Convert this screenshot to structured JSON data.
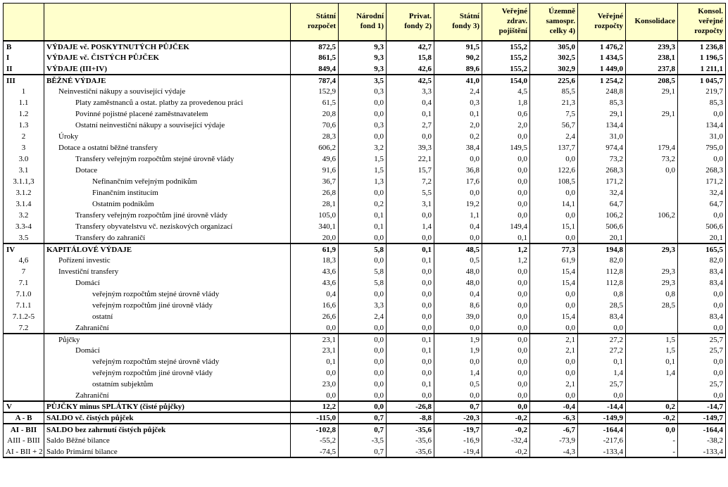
{
  "headers": [
    "",
    "",
    "Státní rozpočet",
    "Národní fond 1)",
    "Privat. fondy 2)",
    "Státní fondy 3)",
    "Veřejné zdrav. pojištění",
    "Územně samospr. celky 4)",
    "Veřejné rozpočty",
    "Konsolidace",
    "Konsol. veřejné rozpočty"
  ],
  "rows": [
    {
      "code": "B",
      "desc": "VÝDAJE vč. POSKYTNUTÝCH PŮJČEK",
      "ind": 0,
      "bold": true,
      "top": true,
      "v": [
        "872,5",
        "9,3",
        "42,7",
        "91,5",
        "155,2",
        "305,0",
        "1 476,2",
        "239,3",
        "1 236,8"
      ]
    },
    {
      "code": "I",
      "desc": "VÝDAJE vč. ČISTÝCH PŮJČEK",
      "ind": 0,
      "bold": true,
      "v": [
        "861,5",
        "9,3",
        "15,8",
        "90,2",
        "155,2",
        "302,5",
        "1 434,5",
        "238,1",
        "1 196,5"
      ]
    },
    {
      "code": "II",
      "desc": "VÝDAJE   (III+IV)",
      "ind": 0,
      "bold": true,
      "v": [
        "849,4",
        "9,3",
        "42,6",
        "89,6",
        "155,2",
        "302,9",
        "1 449,0",
        "237,8",
        "1 211,1"
      ]
    },
    {
      "code": "III",
      "desc": "BĚŽNÉ  VÝDAJE",
      "ind": 0,
      "bold": true,
      "top": true,
      "v": [
        "787,4",
        "3,5",
        "42,5",
        "41,0",
        "154,0",
        "225,6",
        "1 254,2",
        "208,5",
        "1 045,7"
      ]
    },
    {
      "code": "1",
      "desc": "Neinvestiční nákupy a související výdaje",
      "ind": 1,
      "v": [
        "152,9",
        "0,3",
        "3,3",
        "2,4",
        "4,5",
        "85,5",
        "248,8",
        "29,1",
        "219,7"
      ]
    },
    {
      "code": "1.1",
      "desc": "Platy zaměstnanců a ostat. platby za provedenou práci",
      "ind": 2,
      "v": [
        "61,5",
        "0,0",
        "0,4",
        "0,3",
        "1,8",
        "21,3",
        "85,3",
        "",
        "85,3"
      ]
    },
    {
      "code": "1.2",
      "desc": "Povinné pojistné placené zaměstnavatelem",
      "ind": 2,
      "v": [
        "20,8",
        "0,0",
        "0,1",
        "0,1",
        "0,6",
        "7,5",
        "29,1",
        "29,1",
        "0,0"
      ]
    },
    {
      "code": "1.3",
      "desc": "Ostatní neinvestiční nákupy a související výdaje",
      "ind": 2,
      "v": [
        "70,6",
        "0,3",
        "2,7",
        "2,0",
        "2,0",
        "56,7",
        "134,4",
        "",
        "134,4"
      ]
    },
    {
      "code": "2",
      "desc": "Úroky",
      "ind": 1,
      "v": [
        "28,3",
        "0,0",
        "0,0",
        "0,2",
        "0,0",
        "2,4",
        "31,0",
        "",
        "31,0"
      ]
    },
    {
      "code": "3",
      "desc": "Dotace a ostatní běžné transfery",
      "ind": 1,
      "v": [
        "606,2",
        "3,2",
        "39,3",
        "38,4",
        "149,5",
        "137,7",
        "974,4",
        "179,4",
        "795,0"
      ]
    },
    {
      "code": "3.0",
      "desc": "Transfery veřejným rozpočtům stejné úrovně vlády",
      "ind": 2,
      "v": [
        "49,6",
        "1,5",
        "22,1",
        "0,0",
        "0,0",
        "0,0",
        "73,2",
        "73,2",
        "0,0"
      ]
    },
    {
      "code": "3.1",
      "desc": "Dotace",
      "ind": 2,
      "v": [
        "91,6",
        "1,5",
        "15,7",
        "36,8",
        "0,0",
        "122,6",
        "268,3",
        "0,0",
        "268,3"
      ]
    },
    {
      "code": "3.1.1,3",
      "desc": "Nefinančním veřejným podnikům",
      "ind": 3,
      "v": [
        "36,7",
        "1,3",
        "7,2",
        "17,6",
        "0,0",
        "108,5",
        "171,2",
        "",
        "171,2"
      ]
    },
    {
      "code": "3.1.2",
      "desc": "Finančním institucím",
      "ind": 3,
      "v": [
        "26,8",
        "0,0",
        "5,5",
        "0,0",
        "0,0",
        "0,0",
        "32,4",
        "",
        "32,4"
      ]
    },
    {
      "code": "3.1.4",
      "desc": "Ostatním podnikům",
      "ind": 3,
      "v": [
        "28,1",
        "0,2",
        "3,1",
        "19,2",
        "0,0",
        "14,1",
        "64,7",
        "",
        "64,7"
      ]
    },
    {
      "code": "3.2",
      "desc": "Transfery veřejným rozpočtům jiné úrovně vlády",
      "ind": 2,
      "v": [
        "105,0",
        "0,1",
        "0,0",
        "1,1",
        "0,0",
        "0,0",
        "106,2",
        "106,2",
        "0,0"
      ]
    },
    {
      "code": "3.3-4",
      "desc": "Transfery obyvatelstvu vč. neziskových organizací",
      "ind": 2,
      "v": [
        "340,1",
        "0,1",
        "1,4",
        "0,4",
        "149,4",
        "15,1",
        "506,6",
        "",
        "506,6"
      ]
    },
    {
      "code": "3.5",
      "desc": "Transfery do zahraničí",
      "ind": 2,
      "v": [
        "20,0",
        "0,0",
        "0,0",
        "0,0",
        "0,1",
        "0,0",
        "20,1",
        "",
        "20,1"
      ]
    },
    {
      "code": "IV",
      "desc": "KAPITÁLOVÉ VÝDAJE",
      "ind": 0,
      "bold": true,
      "top": true,
      "v": [
        "61,9",
        "5,8",
        "0,1",
        "48,5",
        "1,2",
        "77,3",
        "194,8",
        "29,3",
        "165,5"
      ]
    },
    {
      "code": "4,6",
      "desc": "Pořízení investic",
      "ind": 1,
      "v": [
        "18,3",
        "0,0",
        "0,1",
        "0,5",
        "1,2",
        "61,9",
        "82,0",
        "",
        "82,0"
      ]
    },
    {
      "code": "7",
      "desc": "Investiční transfery",
      "ind": 1,
      "v": [
        "43,6",
        "5,8",
        "0,0",
        "48,0",
        "0,0",
        "15,4",
        "112,8",
        "29,3",
        "83,4"
      ]
    },
    {
      "code": "7.1",
      "desc": "Domácí",
      "ind": 2,
      "v": [
        "43,6",
        "5,8",
        "0,0",
        "48,0",
        "0,0",
        "15,4",
        "112,8",
        "29,3",
        "83,4"
      ]
    },
    {
      "code": "7.1.0",
      "desc": "veřejným rozpočtům stejné úrovně vlády",
      "ind": 3,
      "v": [
        "0,4",
        "0,0",
        "0,0",
        "0,4",
        "0,0",
        "0,0",
        "0,8",
        "0,8",
        "0,0"
      ]
    },
    {
      "code": "7.1.1",
      "desc": "veřejným rozpočtům jiné úrovně vlády",
      "ind": 3,
      "v": [
        "16,6",
        "3,3",
        "0,0",
        "8,6",
        "0,0",
        "0,0",
        "28,5",
        "28,5",
        "0,0"
      ]
    },
    {
      "code": "7.1.2-5",
      "desc": "ostatní",
      "ind": 3,
      "v": [
        "26,6",
        "2,4",
        "0,0",
        "39,0",
        "0,0",
        "15,4",
        "83,4",
        "",
        "83,4"
      ]
    },
    {
      "code": "7.2",
      "desc": "Zahraniční",
      "ind": 2,
      "v": [
        "0,0",
        "0,0",
        "0,0",
        "0,0",
        "0,0",
        "0,0",
        "0,0",
        "",
        "0,0"
      ]
    },
    {
      "code": "",
      "desc": "Půjčky",
      "ind": 1,
      "top": true,
      "v": [
        "23,1",
        "0,0",
        "0,1",
        "1,9",
        "0,0",
        "2,1",
        "27,2",
        "1,5",
        "25,7"
      ]
    },
    {
      "code": "",
      "desc": "Domácí",
      "ind": 2,
      "v": [
        "23,1",
        "0,0",
        "0,1",
        "1,9",
        "0,0",
        "2,1",
        "27,2",
        "1,5",
        "25,7"
      ]
    },
    {
      "code": "",
      "desc": "veřejným rozpočtům stejné úrovně vlády",
      "ind": 3,
      "v": [
        "0,1",
        "0,0",
        "0,0",
        "0,0",
        "0,0",
        "0,0",
        "0,1",
        "0,1",
        "0,0"
      ]
    },
    {
      "code": "",
      "desc": "veřejným rozpočtům jiné úrovně vlády",
      "ind": 3,
      "v": [
        "0,0",
        "0,0",
        "0,0",
        "1,4",
        "0,0",
        "0,0",
        "1,4",
        "1,4",
        "0,0"
      ]
    },
    {
      "code": "",
      "desc": "ostatním subjektům",
      "ind": 3,
      "v": [
        "23,0",
        "0,0",
        "0,1",
        "0,5",
        "0,0",
        "2,1",
        "25,7",
        "",
        "25,7"
      ]
    },
    {
      "code": "",
      "desc": "Zahraniční",
      "ind": 2,
      "v": [
        "0,0",
        "0,0",
        "0,0",
        "0,0",
        "0,0",
        "0,0",
        "0,0",
        "",
        "0,0"
      ]
    },
    {
      "code": "V",
      "desc": "PŮJČKY  minus SPLÁTKY (čisté půjčky)",
      "ind": 0,
      "bold": true,
      "top": true,
      "v": [
        "12,2",
        "0,0",
        "-26,8",
        "0,7",
        "0,0",
        "-0,4",
        "-14,4",
        "0,2",
        "-14,7"
      ]
    },
    {
      "code": "A - B",
      "desc": "SALDO  vč. čistých půjček",
      "ind": 0,
      "bold": true,
      "top": true,
      "v": [
        "-115,0",
        "0,7",
        "-8,8",
        "-20,3",
        "-0,2",
        "-6,3",
        "-149,9",
        "-0,2",
        "-149,7"
      ]
    },
    {
      "code": "AI - BII",
      "desc": "SALDO bez zahrnutí čistých půjček",
      "ind": 0,
      "bold": true,
      "top": true,
      "v": [
        "-102,8",
        "0,7",
        "-35,6",
        "-19,7",
        "-0,2",
        "-6,7",
        "-164,4",
        "0,0",
        "-164,4"
      ]
    },
    {
      "code": "AIII - BIII",
      "desc": "Saldo Běžné bilance",
      "ind": 0,
      "v": [
        "-55,2",
        "-3,5",
        "-35,6",
        "-16,9",
        "-32,4",
        "-73,9",
        "-217,6",
        "-",
        "-38,2"
      ]
    },
    {
      "code": "AI - BII + 2",
      "desc": "Saldo Primární bilance",
      "ind": 0,
      "last": true,
      "v": [
        "-74,5",
        "0,7",
        "-35,6",
        "-19,4",
        "-0,2",
        "-4,3",
        "-133,4",
        "-",
        "-133,4"
      ]
    }
  ]
}
